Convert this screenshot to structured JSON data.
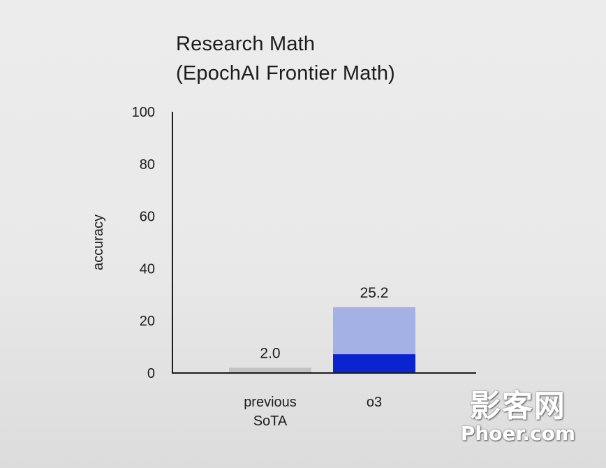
{
  "chart_data": {
    "type": "bar",
    "title": "Research Math",
    "subtitle": "(EpochAI Frontier Math)",
    "ylabel": "accuracy",
    "xlabel": "",
    "ylim": [
      0,
      100
    ],
    "yticks": [
      0,
      20,
      40,
      60,
      80,
      100
    ],
    "grid": false,
    "categories": [
      "previous SoTA",
      "o3"
    ],
    "bars": [
      {
        "category": "previous SoTA",
        "label_lines": [
          "previous",
          "SoTA"
        ],
        "total": 2.0,
        "data_label": "2.0",
        "segments": [
          {
            "value": 2.0,
            "color": "#c3c3c3"
          }
        ]
      },
      {
        "category": "o3",
        "label_lines": [
          "o3"
        ],
        "total": 25.2,
        "data_label": "25.2",
        "segments": [
          {
            "value": 7.2,
            "color": "#0a24d0"
          },
          {
            "value": 18.0,
            "color": "#a4b1e4"
          }
        ]
      }
    ]
  },
  "watermark": {
    "line1": "影客网",
    "line2": "Phoer.com"
  }
}
